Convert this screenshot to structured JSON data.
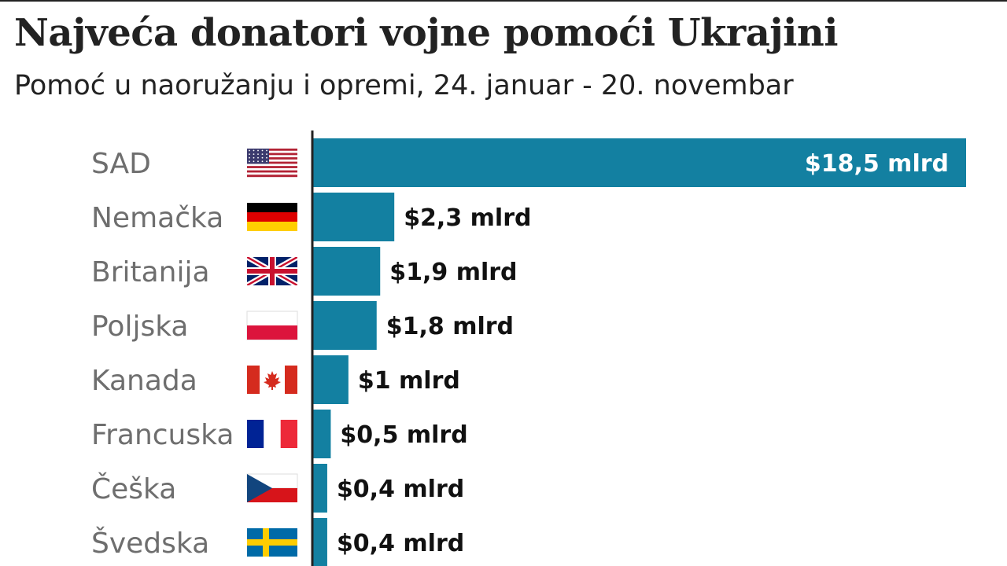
{
  "chart_data": {
    "type": "bar",
    "orientation": "horizontal",
    "title": "Najveća donatori vojne pomoći Ukrajini",
    "subtitle": "Pomoć u naoružanju i opremi, 24. januar - 20. novembar",
    "categories": [
      "SAD",
      "Nemačka",
      "Britanija",
      "Poljska",
      "Kanada",
      "Francuska",
      "Češka",
      "Švedska"
    ],
    "flags": [
      "us-flag-icon",
      "germany-flag-icon",
      "uk-flag-icon",
      "poland-flag-icon",
      "canada-flag-icon",
      "france-flag-icon",
      "czechia-flag-icon",
      "sweden-flag-icon"
    ],
    "values": [
      18.5,
      2.3,
      1.9,
      1.8,
      1.0,
      0.5,
      0.4,
      0.4
    ],
    "value_labels": [
      "$18,5 mlrd",
      "$2,3 mlrd",
      "$1,9 mlrd",
      "$1,8 mlrd",
      "$1 mlrd",
      "$0,5 mlrd",
      "$0,4 mlrd",
      "$0,4 mlrd"
    ],
    "unit": "mlrd USD",
    "xlim": [
      0,
      18.5
    ],
    "bar_color": "#1380a1",
    "grid": false,
    "legend": "none"
  }
}
